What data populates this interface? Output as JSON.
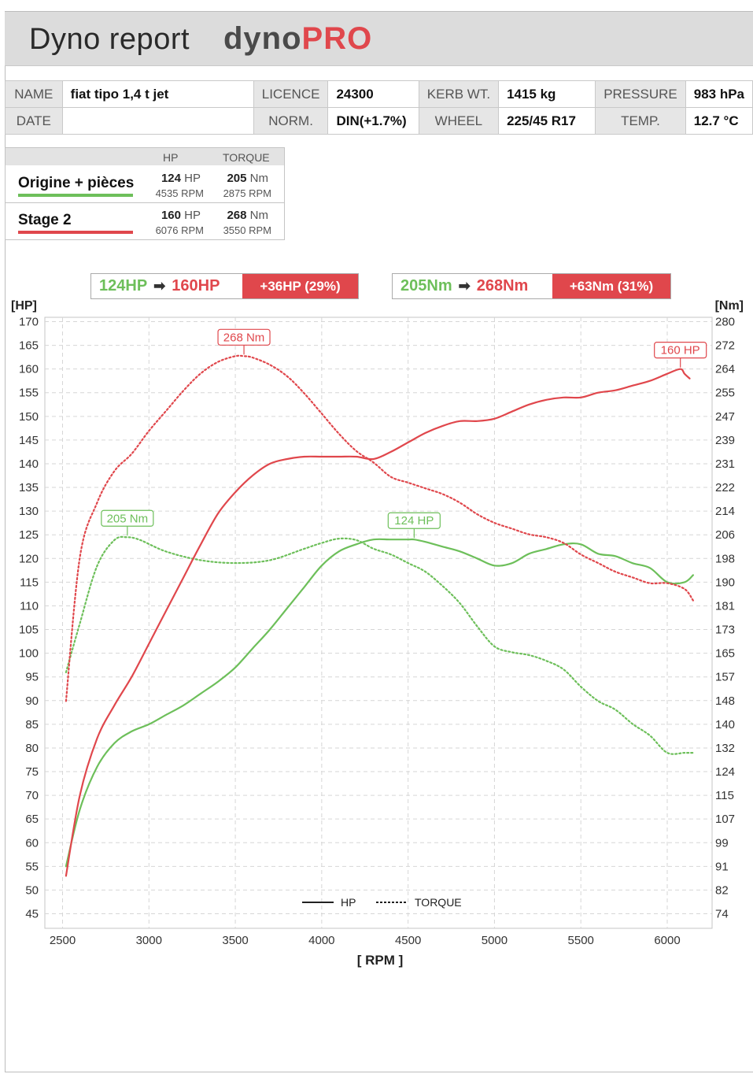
{
  "header": {
    "title": "Dyno report",
    "logo_part1": "dyno",
    "logo_part2": "PRO"
  },
  "info": {
    "name_label": "NAME",
    "name": "fiat tipo 1,4 t jet",
    "licence_label": "LICENCE",
    "licence": "24300",
    "kerb_label": "KERB WT.",
    "kerb": "1415 kg",
    "pressure_label": "PRESSURE",
    "pressure": "983 hPa",
    "date_label": "DATE",
    "date": "",
    "norm_label": "NORM.",
    "norm": "DIN(+1.7%)",
    "wheel_label": "WHEEL",
    "wheel": "225/45 R17",
    "temp_label": "TEMP.",
    "temp": "12.7 °C"
  },
  "legend": {
    "hp_header": "HP",
    "torque_header": "TORQUE",
    "rows": [
      {
        "name": "Origine + pièces",
        "hp": "124",
        "hp_unit": "HP",
        "hp_rpm": "4535 RPM",
        "tq": "205",
        "tq_unit": "Nm",
        "tq_rpm": "2875 RPM"
      },
      {
        "name": "Stage 2",
        "hp": "160",
        "hp_unit": "HP",
        "hp_rpm": "6076 RPM",
        "tq": "268",
        "tq_unit": "Nm",
        "tq_rpm": "3550 RPM"
      }
    ]
  },
  "summary": {
    "hp_from": "124HP",
    "hp_to": "160HP",
    "hp_delta": "+36HP (29%)",
    "tq_from": "205Nm",
    "tq_to": "268Nm",
    "tq_delta": "+63Nm (31%)"
  },
  "colors": {
    "stock": "#6dbf5a",
    "stage2": "#e0474c",
    "grid": "#d6d6d6"
  },
  "chart_data": {
    "type": "line",
    "xlabel": "[ RPM ]",
    "ylabel_left": "[HP]",
    "ylabel_right": "[Nm]",
    "xlim": [
      2500,
      6150
    ],
    "ylim_left": [
      42,
      170
    ],
    "x_ticks": [
      2500,
      3000,
      3500,
      4000,
      4500,
      5000,
      5500,
      6000
    ],
    "y_ticks_left": [
      170,
      165,
      160,
      155,
      150,
      145,
      140,
      135,
      130,
      125,
      120,
      115,
      110,
      105,
      100,
      95,
      90,
      85,
      80,
      75,
      70,
      65,
      60,
      55,
      50,
      45
    ],
    "y_ticks_right": [
      "280",
      "272",
      "264",
      "255",
      "247",
      "239",
      "231",
      "222",
      "214",
      "206",
      "198",
      "190",
      "181",
      "173",
      "165",
      "157",
      "148",
      "140",
      "132",
      "124",
      "115",
      "107",
      "99",
      "91",
      "82",
      "74"
    ],
    "legend_hp": "HP",
    "legend_torque": "TORQUE",
    "legend_placement": "bottom-center",
    "grid": true,
    "series": [
      {
        "name": "Origine + pièces",
        "kind": "hp",
        "axis": "left",
        "x": [
          2520,
          2600,
          2700,
          2800,
          2900,
          3000,
          3100,
          3200,
          3300,
          3400,
          3500,
          3600,
          3700,
          3800,
          3900,
          4000,
          4100,
          4200,
          4300,
          4400,
          4500,
          4535,
          4600,
          4700,
          4800,
          4900,
          5000,
          5100,
          5200,
          5300,
          5400,
          5500,
          5600,
          5700,
          5800,
          5900,
          6000,
          6100,
          6150
        ],
        "values": [
          55,
          67,
          76,
          81,
          83.5,
          85,
          87,
          89,
          91.5,
          94,
          97,
          101,
          105,
          109.5,
          114,
          118.5,
          121.5,
          123,
          124,
          124,
          124,
          124,
          123.5,
          122.5,
          121.5,
          120,
          118.5,
          119,
          121,
          122,
          123,
          123,
          121,
          120.5,
          119,
          118,
          115,
          115,
          116.5
        ]
      },
      {
        "name": "Origine + pièces",
        "kind": "torque",
        "axis": "right",
        "x": [
          2520,
          2600,
          2700,
          2800,
          2875,
          2950,
          3100,
          3300,
          3500,
          3700,
          3900,
          4000,
          4100,
          4200,
          4300,
          4400,
          4500,
          4600,
          4700,
          4800,
          4900,
          5000,
          5100,
          5200,
          5300,
          5400,
          5500,
          5600,
          5700,
          5800,
          5900,
          6000,
          6100,
          6150
        ],
        "values": [
          158,
          175,
          195,
          204,
          205,
          204,
          200,
          197,
          196,
          197,
          201,
          203,
          204.5,
          204,
          201,
          199,
          196,
          193,
          188,
          182,
          174,
          167,
          165,
          164,
          162,
          159,
          153,
          148,
          145,
          140,
          136,
          130,
          130,
          130
        ]
      },
      {
        "name": "Stage 2",
        "kind": "hp",
        "axis": "left",
        "x": [
          2520,
          2600,
          2700,
          2800,
          2900,
          3000,
          3100,
          3200,
          3300,
          3400,
          3500,
          3600,
          3700,
          3800,
          3900,
          4000,
          4100,
          4200,
          4300,
          4400,
          4500,
          4600,
          4700,
          4800,
          4900,
          5000,
          5100,
          5200,
          5300,
          5400,
          5500,
          5600,
          5700,
          5800,
          5900,
          6000,
          6076,
          6100,
          6130
        ],
        "values": [
          53,
          70,
          82,
          89,
          95,
          102,
          109,
          116,
          123,
          129.5,
          134,
          137.5,
          140,
          141,
          141.5,
          141.5,
          141.5,
          141.5,
          141,
          142.5,
          144.5,
          146.5,
          148,
          149,
          149,
          149.5,
          151,
          152.5,
          153.5,
          154,
          154,
          155,
          155.5,
          156.5,
          157.5,
          159,
          160,
          159,
          158
        ]
      },
      {
        "name": "Stage 2",
        "kind": "torque",
        "axis": "right",
        "x": [
          2520,
          2600,
          2700,
          2800,
          2900,
          3000,
          3100,
          3200,
          3300,
          3400,
          3500,
          3550,
          3600,
          3700,
          3800,
          3900,
          4000,
          4100,
          4200,
          4300,
          4400,
          4500,
          4600,
          4700,
          4800,
          4900,
          5000,
          5100,
          5200,
          5300,
          5400,
          5500,
          5600,
          5700,
          5800,
          5900,
          6000,
          6100,
          6150
        ],
        "values": [
          148,
          198,
          217,
          228,
          234,
          242,
          249,
          256,
          262,
          266,
          268,
          268,
          267.5,
          265,
          261,
          255,
          248,
          241,
          235,
          231,
          226,
          224,
          222,
          220,
          217,
          213,
          210,
          208,
          206,
          205,
          203,
          199,
          196,
          193,
          191,
          189,
          189,
          187,
          183
        ]
      }
    ],
    "annotations": [
      {
        "text": "268 Nm",
        "series": "Stage 2",
        "kind": "torque",
        "x": 3550,
        "value": 268
      },
      {
        "text": "160 HP",
        "series": "Stage 2",
        "kind": "hp",
        "x": 6076,
        "value": 160
      },
      {
        "text": "205 Nm",
        "series": "Origine + pièces",
        "kind": "torque",
        "x": 2875,
        "value": 205
      },
      {
        "text": "124 HP",
        "series": "Origine + pièces",
        "kind": "hp",
        "x": 4535,
        "value": 124
      }
    ]
  }
}
